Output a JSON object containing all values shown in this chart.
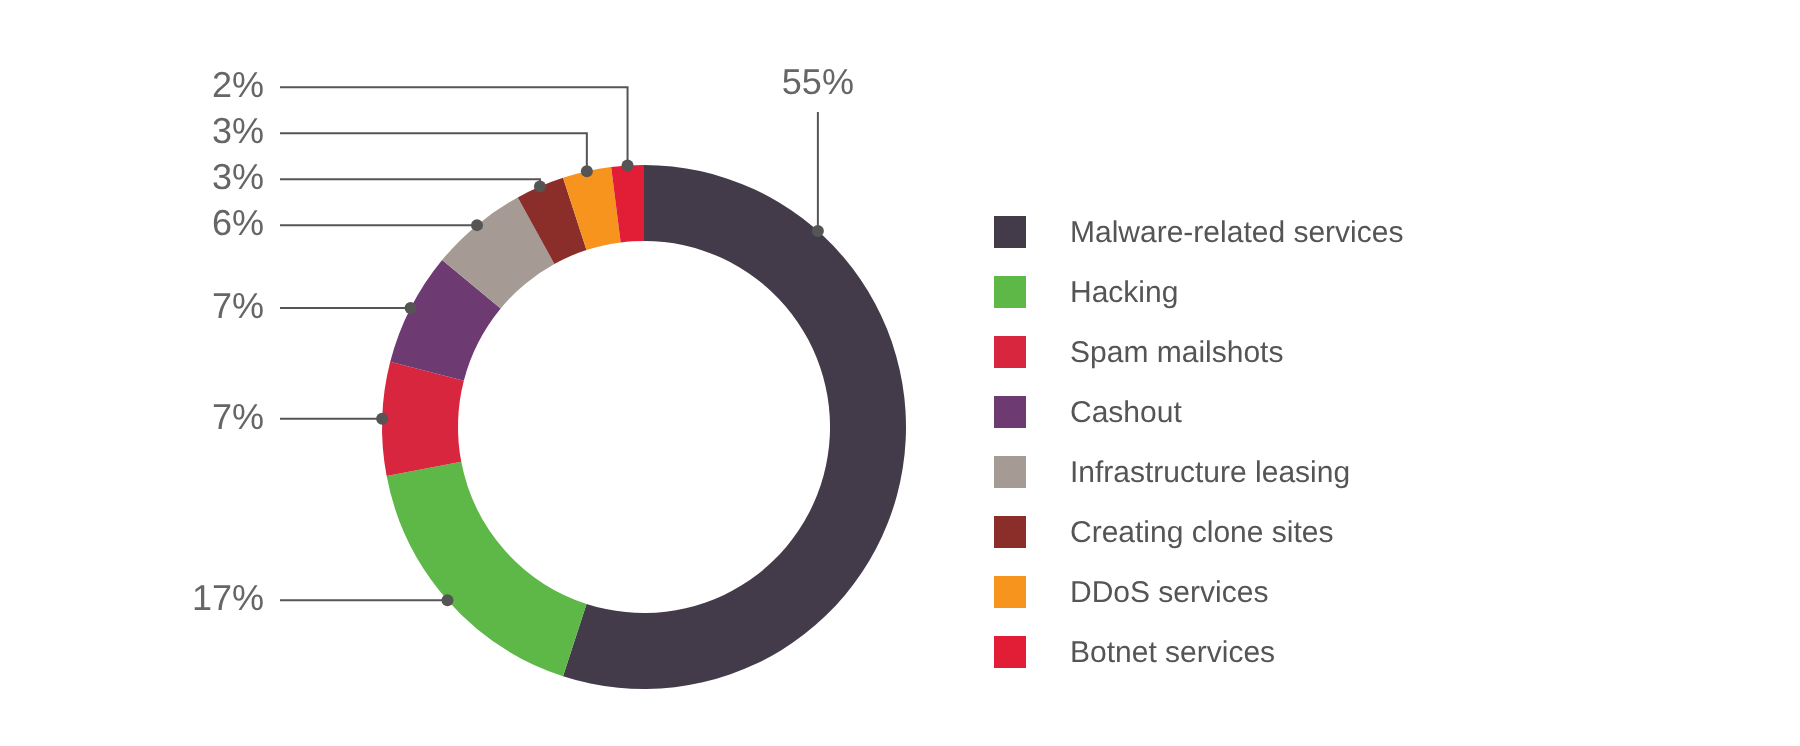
{
  "chart_data": {
    "type": "donut",
    "categories": [
      "Malware-related services",
      "Hacking",
      "Spam mailshots",
      "Cashout",
      "Infrastructure leasing",
      "Creating clone sites",
      "DDoS services",
      "Botnet services"
    ],
    "values": [
      55,
      17,
      7,
      7,
      6,
      3,
      3,
      2
    ],
    "value_labels": [
      "55%",
      "17%",
      "7%",
      "7%",
      "6%",
      "3%",
      "3%",
      "2%"
    ],
    "colors": [
      "#443b4a",
      "#5db847",
      "#d7263d",
      "#6d3a72",
      "#a59a94",
      "#8b2e2a",
      "#f7941d",
      "#e21e36"
    ],
    "legend": "right"
  }
}
